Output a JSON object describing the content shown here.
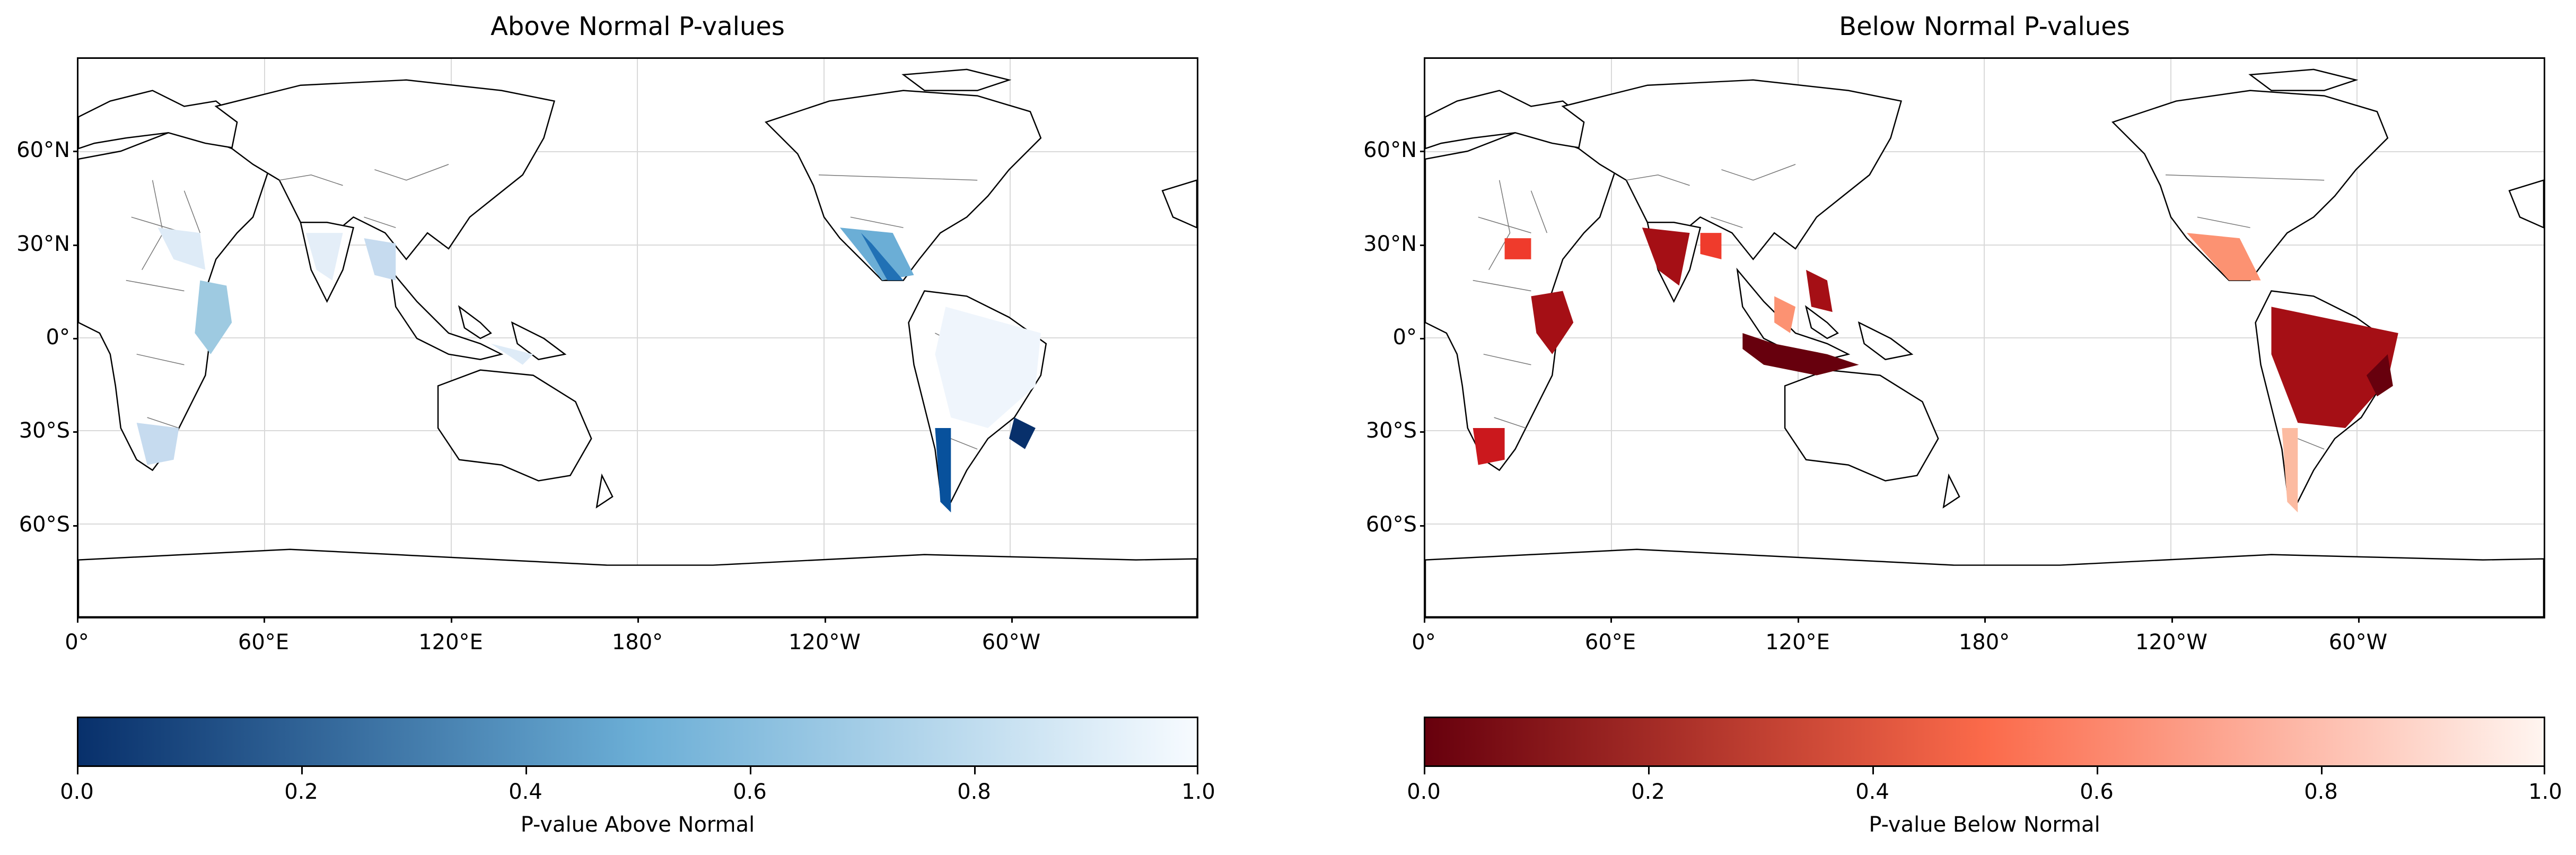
{
  "panels": [
    {
      "title": "Above Normal P-values",
      "colorbar_label": "P-value Above Normal",
      "colormap": "Blues_r",
      "colors": {
        "low": "#08306b",
        "mid": "#6baed6",
        "high": "#f7fbff"
      }
    },
    {
      "title": "Below Normal P-values",
      "colorbar_label": "P-value Below Normal",
      "colormap": "Reds_r",
      "colors": {
        "low": "#67000d",
        "mid": "#fb6a4a",
        "high": "#fff5f0"
      }
    }
  ],
  "axes": {
    "lat_ticks": [
      "60°N",
      "30°N",
      "0°",
      "30°S",
      "60°S"
    ],
    "lon_ticks": [
      "0°",
      "60°E",
      "120°E",
      "180°",
      "120°W",
      "60°W"
    ],
    "colorbar_ticks": [
      "0.0",
      "0.2",
      "0.4",
      "0.6",
      "0.8",
      "1.0"
    ]
  },
  "map": {
    "projection": "PlateCarree, central longitude 180°",
    "extent": {
      "lon": [
        0,
        360
      ],
      "lat": [
        -90,
        90
      ]
    },
    "gridlines": true,
    "coastlines": true,
    "borders": true
  }
}
